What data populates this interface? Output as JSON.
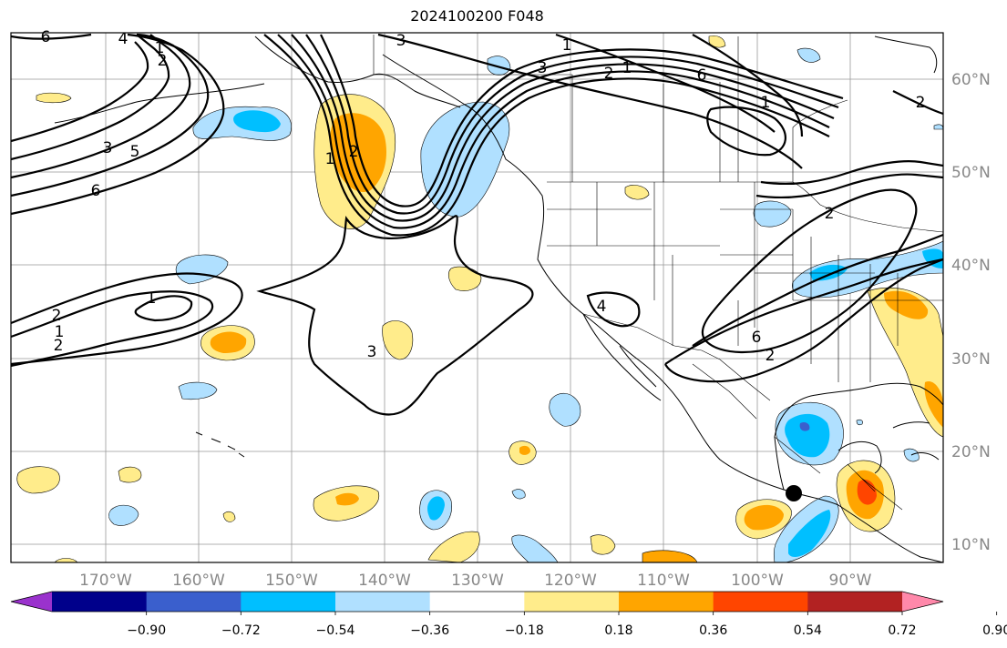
{
  "title": "2024100200 F048",
  "map": {
    "longitude_labels": [
      "170°W",
      "160°W",
      "150°W",
      "140°W",
      "130°W",
      "120°W",
      "110°W",
      "100°W",
      "90°W"
    ],
    "latitude_labels": [
      "60°N",
      "50°N",
      "40°N",
      "30°N",
      "20°N",
      "10°N"
    ],
    "contour_labels": [
      "6",
      "4",
      "1",
      "2",
      "3",
      "5",
      "6",
      "1",
      "2",
      "3",
      "1",
      "3",
      "2",
      "1",
      "6",
      "1",
      "2",
      "1",
      "2",
      "1",
      "2",
      "3",
      "4",
      "6",
      "2",
      "2"
    ],
    "marker": "storm-center-dot"
  },
  "colorbar": {
    "tick_labels": [
      "−0.90",
      "−0.72",
      "−0.54",
      "−0.36",
      "−0.18",
      "0.18",
      "0.36",
      "0.54",
      "0.72",
      "0.90"
    ],
    "colors": [
      "#9a32cd",
      "#00008b",
      "#3a5fcd",
      "#00bfff",
      "#b0e0ff",
      "#ffffff",
      "#ffec8b",
      "#ffa500",
      "#ff4500",
      "#b22222",
      "#ff88aa"
    ]
  }
}
